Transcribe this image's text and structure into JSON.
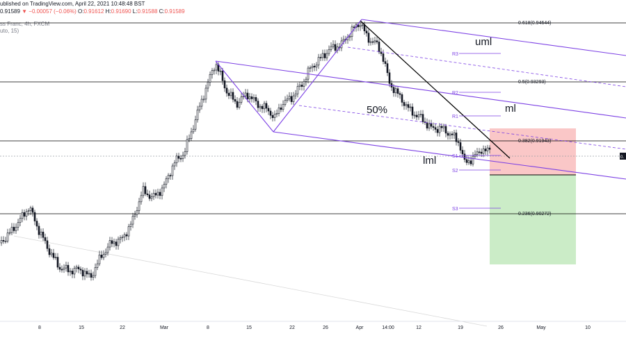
{
  "header": {
    "line1_prefix": "ublished on TradingView.com, April 22, 2021 10:48:48 BST",
    "line2_price": "0.91589",
    "line2_change": "▼ −0.00057 (−0.06%)",
    "o_label": "O:",
    "o_value": "0.91612",
    "h_label": "H:",
    "h_value": "0.91690",
    "l_label": "L:",
    "l_value": "0.91588",
    "c_label": "C:",
    "c_value": "0.91589",
    "line3": "ss Franc, 4h, FXCM",
    "line4": "uto, 15)"
  },
  "colors": {
    "up": "#131722",
    "down": "#131722",
    "pitchfork": "#7b3fe4",
    "trend": "#000000",
    "fib": "#000000",
    "stop_zone": "#f8b4b4",
    "target_zone": "#b9e6b4",
    "grid_text": "#131722"
  },
  "chart_data": {
    "type": "candlestick",
    "symbol_partial": "ss Franc, 4h, FXCM",
    "x_ticks": [
      "8",
      "15",
      "22",
      "Mar",
      "8",
      "15",
      "22",
      "26",
      "Apr",
      "14:00",
      "12",
      "19",
      "26",
      "May",
      "10"
    ],
    "fib_levels": [
      {
        "ratio": "0.618",
        "value": "0.94644"
      },
      {
        "ratio": "0.5",
        "value": "0.93293"
      },
      {
        "ratio": "0.382",
        "value": "0.91943"
      },
      {
        "ratio": "0.236",
        "value": "0.90272"
      }
    ],
    "pivots": [
      "R3",
      "R2",
      "R1",
      "S1",
      "S2",
      "S3"
    ],
    "annotations": [
      "uml",
      "ml",
      "50%",
      "lml"
    ],
    "price_label_partial": "0."
  }
}
